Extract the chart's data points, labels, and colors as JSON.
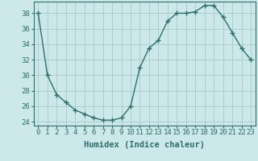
{
  "x": [
    0,
    1,
    2,
    3,
    4,
    5,
    6,
    7,
    8,
    9,
    10,
    11,
    12,
    13,
    14,
    15,
    16,
    17,
    18,
    19,
    20,
    21,
    22,
    23
  ],
  "y": [
    38,
    30,
    27.5,
    26.5,
    25.5,
    25,
    24.5,
    24.2,
    24.2,
    24.5,
    26,
    31,
    33.5,
    34.5,
    37,
    38,
    38,
    38.2,
    39,
    39,
    37.5,
    35.5,
    33.5,
    32
  ],
  "line_color": "#2d6e6e",
  "marker": "+",
  "marker_size": 4,
  "bg_color": "#cce8e8",
  "grid_color": "#aacece",
  "xlabel": "Humidex (Indice chaleur)",
  "ylim": [
    23.5,
    39.5
  ],
  "xlim": [
    -0.5,
    23.5
  ],
  "yticks": [
    24,
    26,
    28,
    30,
    32,
    34,
    36,
    38
  ],
  "xticks": [
    0,
    1,
    2,
    3,
    4,
    5,
    6,
    7,
    8,
    9,
    10,
    11,
    12,
    13,
    14,
    15,
    16,
    17,
    18,
    19,
    20,
    21,
    22,
    23
  ],
  "tick_label_fontsize": 6.5,
  "xlabel_fontsize": 7.5
}
